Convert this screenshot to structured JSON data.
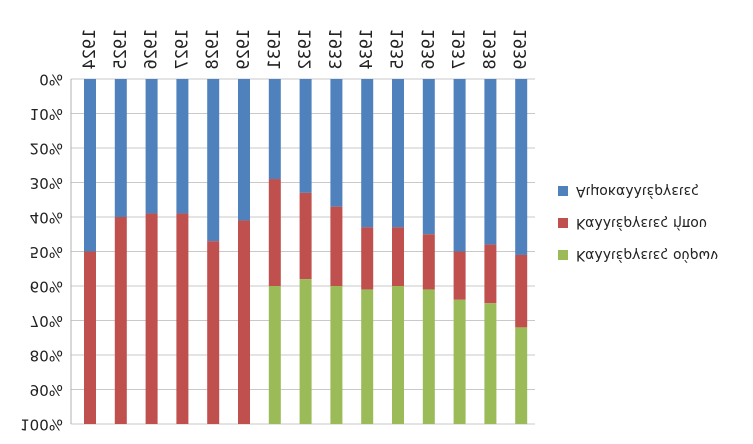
{
  "chart_data": {
    "type": "bar",
    "stacked": true,
    "percent": true,
    "orientation": "vertical, image shown upside down (mirrored)",
    "categories": [
      "1924",
      "1925",
      "1926",
      "1927",
      "1928",
      "1929",
      "1931",
      "1932",
      "1933",
      "1934",
      "1935",
      "1936",
      "1937",
      "1938",
      "1939"
    ],
    "series": [
      {
        "name": "Αιμοκαλλιέργειες",
        "color": "#4f81bd",
        "values": [
          50,
          40,
          39,
          39,
          47,
          41,
          29,
          33,
          37,
          43,
          43,
          45,
          50,
          48,
          51
        ]
      },
      {
        "name": "Καλλιέργειες  ήπου",
        "color": "#c0504d",
        "values": [
          50,
          60,
          61,
          61,
          53,
          59,
          31,
          25,
          23,
          18,
          17,
          16,
          14,
          17,
          21
        ]
      },
      {
        "name": "Καλλιέργειες ούρων",
        "color": "#9bbb59",
        "values": [
          0,
          0,
          0,
          0,
          0,
          0,
          40,
          42,
          40,
          39,
          40,
          39,
          36,
          35,
          28
        ]
      }
    ],
    "yticks": [
      "0%",
      "10%",
      "20%",
      "30%",
      "40%",
      "50%",
      "60%",
      "70%",
      "80%",
      "90%",
      "100%"
    ],
    "ylim": [
      0,
      100
    ],
    "legend_position": "right",
    "title": "",
    "xlabel": "",
    "ylabel": ""
  }
}
